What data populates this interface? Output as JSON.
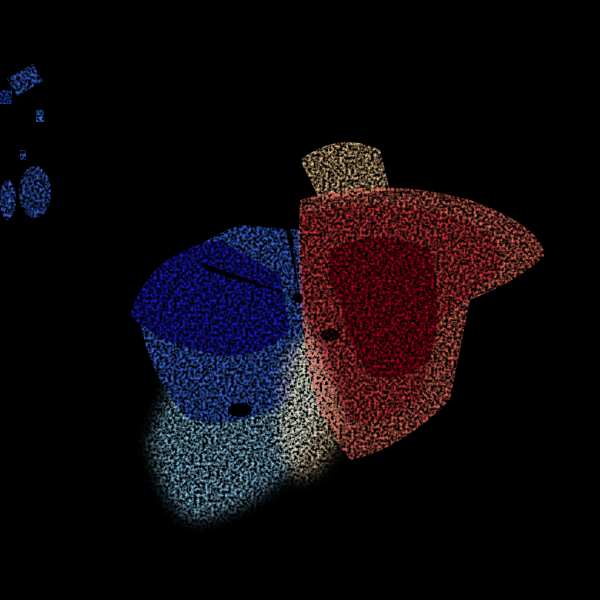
{
  "image": {
    "kind": "doppler-velocity-radar",
    "background": "#000000",
    "colors": {
      "inbound_strong": "#1a1ad8",
      "inbound_medium": "#3c6ef0",
      "inbound_weak": "#8fd0f5",
      "near_zero": "#f5dcae",
      "outbound_weak": "#f06a5a",
      "outbound_medium": "#e63a3c",
      "outbound_strong": "#b0001e"
    }
  }
}
